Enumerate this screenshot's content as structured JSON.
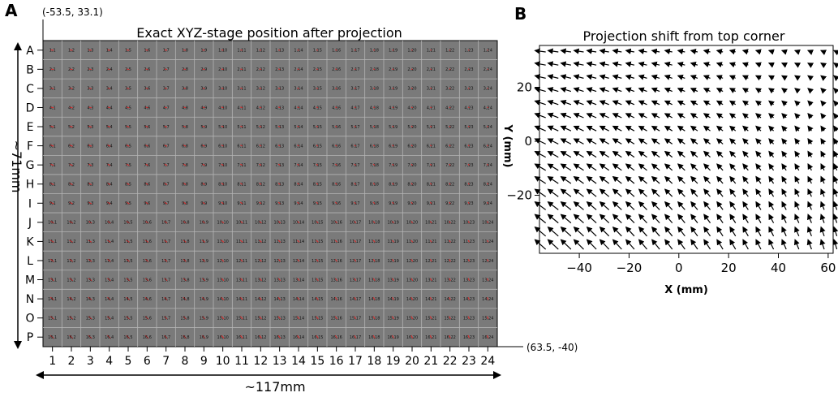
{
  "panels": {
    "a_letter": "A",
    "b_letter": "B"
  },
  "chart_data": [
    {
      "type": "heatmap",
      "title": "Exact XYZ-stage position after projection",
      "rows": [
        "A",
        "B",
        "C",
        "D",
        "E",
        "F",
        "G",
        "H",
        "I",
        "J",
        "K",
        "L",
        "M",
        "N",
        "O",
        "P"
      ],
      "columns": [
        "1",
        "2",
        "3",
        "4",
        "5",
        "6",
        "7",
        "8",
        "9",
        "10",
        "11",
        "12",
        "13",
        "14",
        "15",
        "16",
        "17",
        "18",
        "19",
        "20",
        "21",
        "22",
        "23",
        "24"
      ],
      "corner_top_left": "(-53.5, 33.1)",
      "corner_bottom_right": "(63.5, -40)",
      "width_label": "~117mm",
      "height_label": "~71mm",
      "grid": true,
      "colors": {
        "background": "#7a7a7a",
        "grid": "#b4b4b4",
        "marker": "#d42a2a"
      }
    },
    {
      "type": "quiver",
      "title": "Projection shift from top corner",
      "xlabel": "X (mm)",
      "ylabel": "Y (mm)",
      "xlim": [
        -56,
        62
      ],
      "ylim": [
        -41.5,
        35.5
      ],
      "xticks": [
        -40,
        -20,
        0,
        20,
        40,
        60
      ],
      "yticks": [
        20,
        0,
        -20
      ],
      "x_origins": [
        -53.5,
        63.5
      ],
      "y_origins": [
        33.1,
        -40
      ],
      "grid_cols": 24,
      "grid_rows": 16,
      "shift_x_mm": [
        -4.5,
        -1.2
      ],
      "shift_y_mm": [
        0.6,
        4.0
      ],
      "colors": {
        "arrow": "#000000"
      }
    }
  ]
}
